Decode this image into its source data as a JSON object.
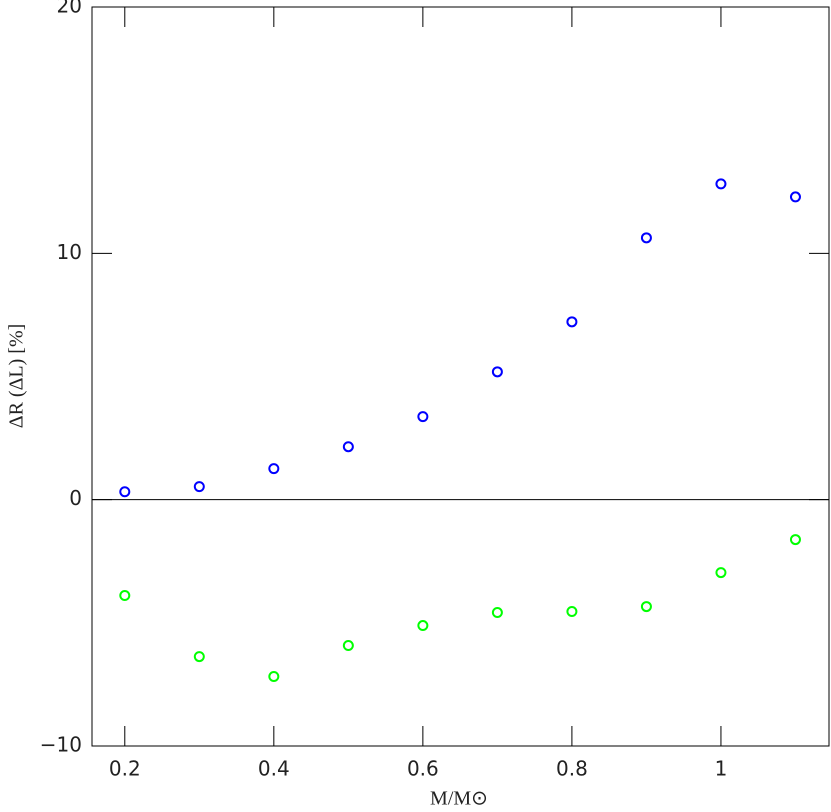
{
  "chart_data": {
    "type": "scatter",
    "xlabel": "M/M⊙",
    "ylabel": "ΔR (ΔL) [%]",
    "x": [
      0.2,
      0.3,
      0.4,
      0.5,
      0.6,
      0.7,
      0.8,
      0.9,
      1.0,
      1.1
    ],
    "series": [
      {
        "color": "#0000ff",
        "values": [
          0.32,
          0.53,
          1.26,
          2.15,
          3.37,
          5.19,
          7.22,
          10.63,
          12.82,
          12.29
        ]
      },
      {
        "color": "#00ff00",
        "values": [
          -3.89,
          -6.37,
          -7.18,
          -5.92,
          -5.11,
          -4.58,
          -4.54,
          -4.34,
          -2.96,
          -1.62
        ]
      }
    ],
    "xlim": [
      0.156,
      1.145
    ],
    "ylim": [
      -10,
      20
    ],
    "xticks": [
      0.2,
      0.4,
      0.6,
      0.8,
      1
    ],
    "yticks": [
      {
        "value": -10,
        "label": "−10"
      },
      0,
      10,
      20
    ],
    "hlines": [
      0
    ],
    "grid": false
  }
}
